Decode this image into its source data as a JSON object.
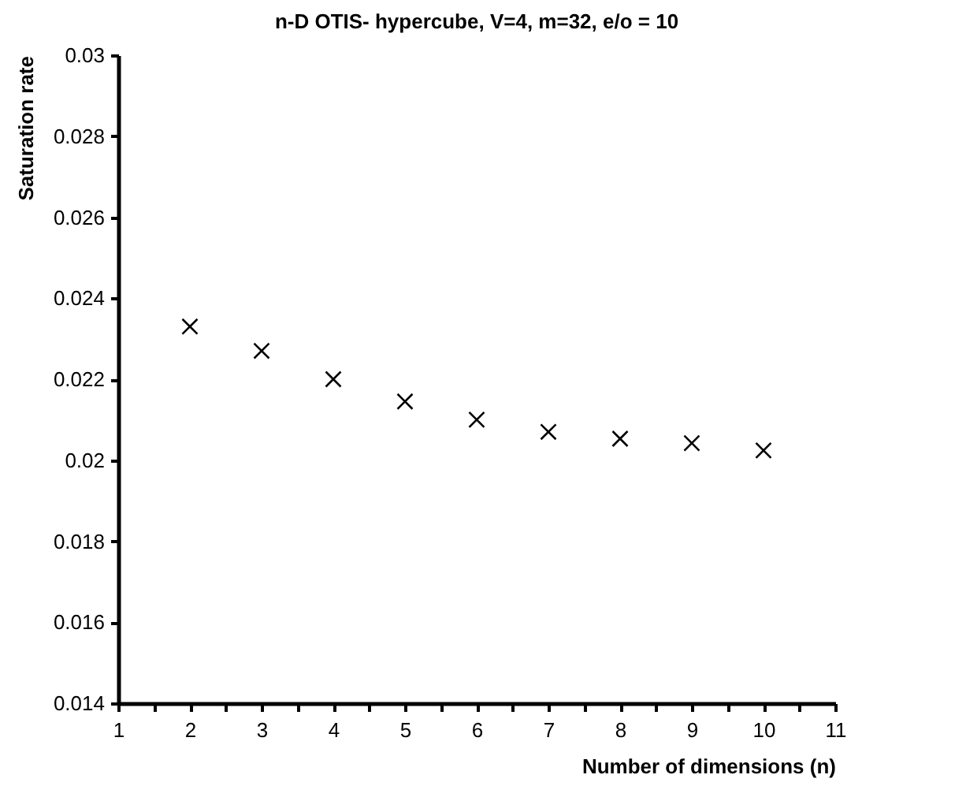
{
  "chart_data": {
    "type": "scatter",
    "title": "n-D OTIS- hypercube, V=4, m=32, e/o = 10",
    "xlabel": "Number of dimensions (n)",
    "ylabel": "Saturation rate",
    "x": [
      2,
      3,
      4,
      5,
      6,
      7,
      8,
      9,
      10
    ],
    "series": [
      {
        "color": "#000000",
        "values": [
          0.0233,
          0.0227,
          0.022,
          0.02145,
          0.021,
          0.0207,
          0.02053,
          0.02042,
          0.02024
        ]
      }
    ],
    "xlim": [
      1,
      11
    ],
    "xticks": [
      1,
      {
        "value": 1.5,
        "label": null
      },
      2,
      {
        "value": 2.5,
        "label": null
      },
      3,
      {
        "value": 3.5,
        "label": null
      },
      4,
      {
        "value": 4.5,
        "label": null
      },
      5,
      {
        "value": 5.5,
        "label": null
      },
      6,
      {
        "value": 6.5,
        "label": null
      },
      7,
      {
        "value": 7.5,
        "label": null
      },
      8,
      {
        "value": 8.5,
        "label": null
      },
      9,
      {
        "value": 9.5,
        "label": null
      },
      10,
      {
        "value": 10.5,
        "label": null
      },
      11
    ],
    "ylim": [
      0.014,
      0.03
    ],
    "yticks": [
      0.014,
      0.016,
      0.018,
      0.02,
      0.022,
      0.024,
      0.026,
      0.028,
      0.03
    ],
    "marker": "cross",
    "grid": false
  }
}
